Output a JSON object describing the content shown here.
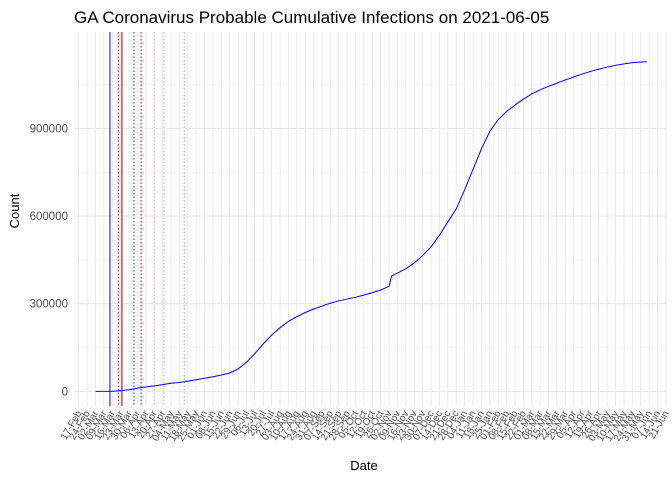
{
  "chart_data": {
    "type": "line",
    "title": "GA Coronavirus Probable Cumulative Infections on 2021-06-05",
    "xlabel": "Date",
    "ylabel": "Count",
    "ylim": [
      -50000,
      1230000
    ],
    "xlim": [
      "2020-02-13",
      "2021-06-21"
    ],
    "grid": true,
    "legend": "none",
    "yticks": [
      0,
      300000,
      600000,
      900000
    ],
    "xticks": [
      {
        "label": "17-Feb",
        "date": "2020-02-17"
      },
      {
        "label": "24-Feb",
        "date": "2020-02-24"
      },
      {
        "label": "02-Mar",
        "date": "2020-03-02"
      },
      {
        "label": "09-Mar",
        "date": "2020-03-09"
      },
      {
        "label": "16-Mar",
        "date": "2020-03-16"
      },
      {
        "label": "23-Mar",
        "date": "2020-03-23"
      },
      {
        "label": "30-Mar",
        "date": "2020-03-30"
      },
      {
        "label": "06-Apr",
        "date": "2020-04-06"
      },
      {
        "label": "13-Apr",
        "date": "2020-04-13"
      },
      {
        "label": "20-Apr",
        "date": "2020-04-20"
      },
      {
        "label": "27-Apr",
        "date": "2020-04-27"
      },
      {
        "label": "04-May",
        "date": "2020-05-04"
      },
      {
        "label": "11-May",
        "date": "2020-05-11"
      },
      {
        "label": "18-May",
        "date": "2020-05-18"
      },
      {
        "label": "25-May",
        "date": "2020-05-25"
      },
      {
        "label": "01-Jun",
        "date": "2020-06-01"
      },
      {
        "label": "08-Jun",
        "date": "2020-06-08"
      },
      {
        "label": "15-Jun",
        "date": "2020-06-15"
      },
      {
        "label": "22-Jun",
        "date": "2020-06-22"
      },
      {
        "label": "29-Jun",
        "date": "2020-06-29"
      },
      {
        "label": "06-Jul",
        "date": "2020-07-06"
      },
      {
        "label": "13-Jul",
        "date": "2020-07-13"
      },
      {
        "label": "20-Jul",
        "date": "2020-07-20"
      },
      {
        "label": "27-Jul",
        "date": "2020-07-27"
      },
      {
        "label": "03-Aug",
        "date": "2020-08-03"
      },
      {
        "label": "10-Aug",
        "date": "2020-08-10"
      },
      {
        "label": "17-Aug",
        "date": "2020-08-17"
      },
      {
        "label": "24-Aug",
        "date": "2020-08-24"
      },
      {
        "label": "31-Aug",
        "date": "2020-08-31"
      },
      {
        "label": "07-Sep",
        "date": "2020-09-07"
      },
      {
        "label": "14-Sep",
        "date": "2020-09-14"
      },
      {
        "label": "21-Sep",
        "date": "2020-09-21"
      },
      {
        "label": "28-Sep",
        "date": "2020-09-28"
      },
      {
        "label": "05-Oct",
        "date": "2020-10-05"
      },
      {
        "label": "12-Oct",
        "date": "2020-10-12"
      },
      {
        "label": "19-Oct",
        "date": "2020-10-19"
      },
      {
        "label": "26-Oct",
        "date": "2020-10-26"
      },
      {
        "label": "02-Nov",
        "date": "2020-11-02"
      },
      {
        "label": "09-Nov",
        "date": "2020-11-09"
      },
      {
        "label": "16-Nov",
        "date": "2020-11-16"
      },
      {
        "label": "23-Nov",
        "date": "2020-11-23"
      },
      {
        "label": "30-Nov",
        "date": "2020-11-30"
      },
      {
        "label": "07-Dec",
        "date": "2020-12-07"
      },
      {
        "label": "14-Dec",
        "date": "2020-12-14"
      },
      {
        "label": "21-Dec",
        "date": "2020-12-21"
      },
      {
        "label": "28-Dec",
        "date": "2020-12-28"
      },
      {
        "label": "04-Jan",
        "date": "2021-01-04"
      },
      {
        "label": "11-Jan",
        "date": "2021-01-11"
      },
      {
        "label": "18-Jan",
        "date": "2021-01-18"
      },
      {
        "label": "25-Jan",
        "date": "2021-01-25"
      },
      {
        "label": "01-Feb",
        "date": "2021-02-01"
      },
      {
        "label": "08-Feb",
        "date": "2021-02-08"
      },
      {
        "label": "15-Feb",
        "date": "2021-02-15"
      },
      {
        "label": "22-Feb",
        "date": "2021-02-22"
      },
      {
        "label": "01-Mar",
        "date": "2021-03-01"
      },
      {
        "label": "08-Mar",
        "date": "2021-03-08"
      },
      {
        "label": "15-Mar",
        "date": "2021-03-15"
      },
      {
        "label": "22-Mar",
        "date": "2021-03-22"
      },
      {
        "label": "29-Mar",
        "date": "2021-03-29"
      },
      {
        "label": "05-Apr",
        "date": "2021-04-05"
      },
      {
        "label": "12-Apr",
        "date": "2021-04-12"
      },
      {
        "label": "19-Apr",
        "date": "2021-04-19"
      },
      {
        "label": "26-Apr",
        "date": "2021-04-26"
      },
      {
        "label": "03-May",
        "date": "2021-05-03"
      },
      {
        "label": "10-May",
        "date": "2021-05-10"
      },
      {
        "label": "17-May",
        "date": "2021-05-17"
      },
      {
        "label": "24-May",
        "date": "2021-05-24"
      },
      {
        "label": "31-May",
        "date": "2021-05-31"
      },
      {
        "label": "07-Jun",
        "date": "2021-06-07"
      },
      {
        "label": "14-Jun",
        "date": "2021-06-14"
      },
      {
        "label": "21-Jun",
        "date": "2021-06-21"
      }
    ],
    "series": [
      {
        "color": "#0000ff",
        "points": [
          {
            "x": "2020-03-02",
            "y": 0
          },
          {
            "x": "2020-03-16",
            "y": 500
          },
          {
            "x": "2020-03-23",
            "y": 2000
          },
          {
            "x": "2020-03-30",
            "y": 6000
          },
          {
            "x": "2020-04-06",
            "y": 11000
          },
          {
            "x": "2020-04-13",
            "y": 15000
          },
          {
            "x": "2020-04-20",
            "y": 19000
          },
          {
            "x": "2020-04-27",
            "y": 23000
          },
          {
            "x": "2020-05-04",
            "y": 28000
          },
          {
            "x": "2020-05-11",
            "y": 31000
          },
          {
            "x": "2020-05-18",
            "y": 35000
          },
          {
            "x": "2020-05-25",
            "y": 40000
          },
          {
            "x": "2020-06-01",
            "y": 45000
          },
          {
            "x": "2020-06-08",
            "y": 50000
          },
          {
            "x": "2020-06-15",
            "y": 56000
          },
          {
            "x": "2020-06-22",
            "y": 63000
          },
          {
            "x": "2020-06-29",
            "y": 77000
          },
          {
            "x": "2020-07-06",
            "y": 100000
          },
          {
            "x": "2020-07-13",
            "y": 130000
          },
          {
            "x": "2020-07-20",
            "y": 163000
          },
          {
            "x": "2020-07-27",
            "y": 193000
          },
          {
            "x": "2020-08-03",
            "y": 218000
          },
          {
            "x": "2020-08-10",
            "y": 240000
          },
          {
            "x": "2020-08-17",
            "y": 256000
          },
          {
            "x": "2020-08-24",
            "y": 270000
          },
          {
            "x": "2020-08-31",
            "y": 282000
          },
          {
            "x": "2020-09-07",
            "y": 292000
          },
          {
            "x": "2020-09-14",
            "y": 302000
          },
          {
            "x": "2020-09-21",
            "y": 310000
          },
          {
            "x": "2020-09-28",
            "y": 316000
          },
          {
            "x": "2020-10-05",
            "y": 322000
          },
          {
            "x": "2020-10-12",
            "y": 330000
          },
          {
            "x": "2020-10-19",
            "y": 338000
          },
          {
            "x": "2020-10-26",
            "y": 347000
          },
          {
            "x": "2020-11-02",
            "y": 360000
          },
          {
            "x": "2020-11-03",
            "y": 378000
          },
          {
            "x": "2020-11-04",
            "y": 395000
          },
          {
            "x": "2020-11-09",
            "y": 405000
          },
          {
            "x": "2020-11-16",
            "y": 420000
          },
          {
            "x": "2020-11-23",
            "y": 440000
          },
          {
            "x": "2020-11-30",
            "y": 465000
          },
          {
            "x": "2020-12-07",
            "y": 495000
          },
          {
            "x": "2020-12-14",
            "y": 535000
          },
          {
            "x": "2020-12-21",
            "y": 580000
          },
          {
            "x": "2020-12-28",
            "y": 625000
          },
          {
            "x": "2021-01-04",
            "y": 690000
          },
          {
            "x": "2021-01-11",
            "y": 760000
          },
          {
            "x": "2021-01-18",
            "y": 830000
          },
          {
            "x": "2021-01-25",
            "y": 890000
          },
          {
            "x": "2021-02-01",
            "y": 930000
          },
          {
            "x": "2021-02-08",
            "y": 958000
          },
          {
            "x": "2021-02-15",
            "y": 980000
          },
          {
            "x": "2021-02-22",
            "y": 1000000
          },
          {
            "x": "2021-03-01",
            "y": 1018000
          },
          {
            "x": "2021-03-08",
            "y": 1032000
          },
          {
            "x": "2021-03-15",
            "y": 1044000
          },
          {
            "x": "2021-03-22",
            "y": 1055000
          },
          {
            "x": "2021-03-29",
            "y": 1066000
          },
          {
            "x": "2021-04-05",
            "y": 1076000
          },
          {
            "x": "2021-04-12",
            "y": 1086000
          },
          {
            "x": "2021-04-19",
            "y": 1095000
          },
          {
            "x": "2021-04-26",
            "y": 1103000
          },
          {
            "x": "2021-05-03",
            "y": 1110000
          },
          {
            "x": "2021-05-10",
            "y": 1116000
          },
          {
            "x": "2021-05-17",
            "y": 1121000
          },
          {
            "x": "2021-05-24",
            "y": 1125000
          },
          {
            "x": "2021-05-31",
            "y": 1127000
          },
          {
            "x": "2021-06-05",
            "y": 1128000
          }
        ]
      }
    ],
    "reference_lines": [
      {
        "date": "2020-03-14",
        "color": "#0000ff",
        "style": "solid"
      },
      {
        "date": "2020-03-24",
        "color": "#8b0000",
        "style": "solid"
      },
      {
        "date": "2020-03-21",
        "color": "#ff0000",
        "style": "dotted"
      },
      {
        "date": "2020-04-03",
        "color": "#006400",
        "style": "dotted"
      },
      {
        "date": "2020-04-09",
        "color": "#cc0000",
        "style": "dotted"
      },
      {
        "date": "2020-04-20",
        "color": "#ffaaaa",
        "style": "dotted"
      },
      {
        "date": "2020-04-28",
        "color": "#ff9999",
        "style": "dotted"
      },
      {
        "date": "2020-05-15",
        "color": "#aaaaaa",
        "style": "dotted"
      }
    ]
  }
}
